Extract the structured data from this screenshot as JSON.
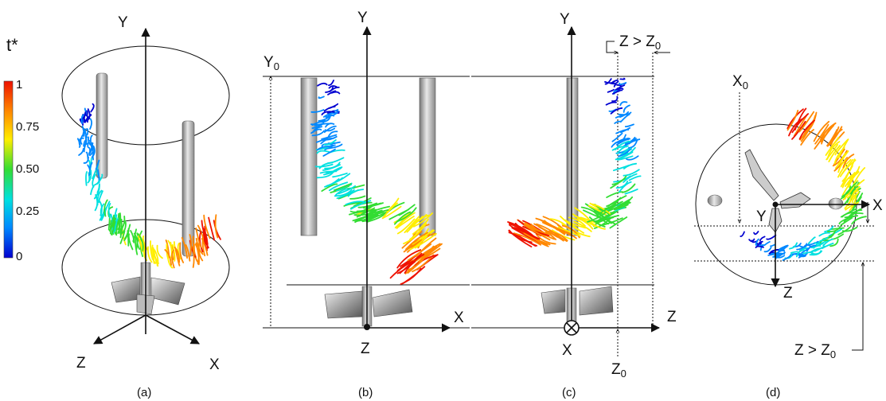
{
  "colorbar": {
    "title": "t*",
    "ticks": [
      "1",
      "0.75",
      "0.50",
      "0.25",
      "0"
    ],
    "colors": [
      "#0000d0",
      "#0088ff",
      "#00e0e0",
      "#33dd33",
      "#ffee00",
      "#ff8800",
      "#ee1100"
    ]
  },
  "panels": [
    {
      "caption": "(a)",
      "axes": {
        "y": "Y",
        "z": "Z",
        "x": "X"
      }
    },
    {
      "caption": "(b)",
      "axes": {
        "y": "Y",
        "y0": "Y",
        "y0_sub": "0",
        "x": "X",
        "z": "Z"
      }
    },
    {
      "caption": "(c)",
      "axes": {
        "y": "Y",
        "cond_lhs": "Z > Z",
        "cond_sub": "0",
        "z": "Z",
        "x": "X",
        "z0": "Z",
        "z0_sub": "0"
      }
    },
    {
      "caption": "(d)",
      "axes": {
        "x0": "X",
        "x0_sub": "0",
        "x": "X",
        "y": "Y",
        "z": "Z",
        "cond_lhs": "Z > Z",
        "cond_sub": "0"
      }
    }
  ]
}
